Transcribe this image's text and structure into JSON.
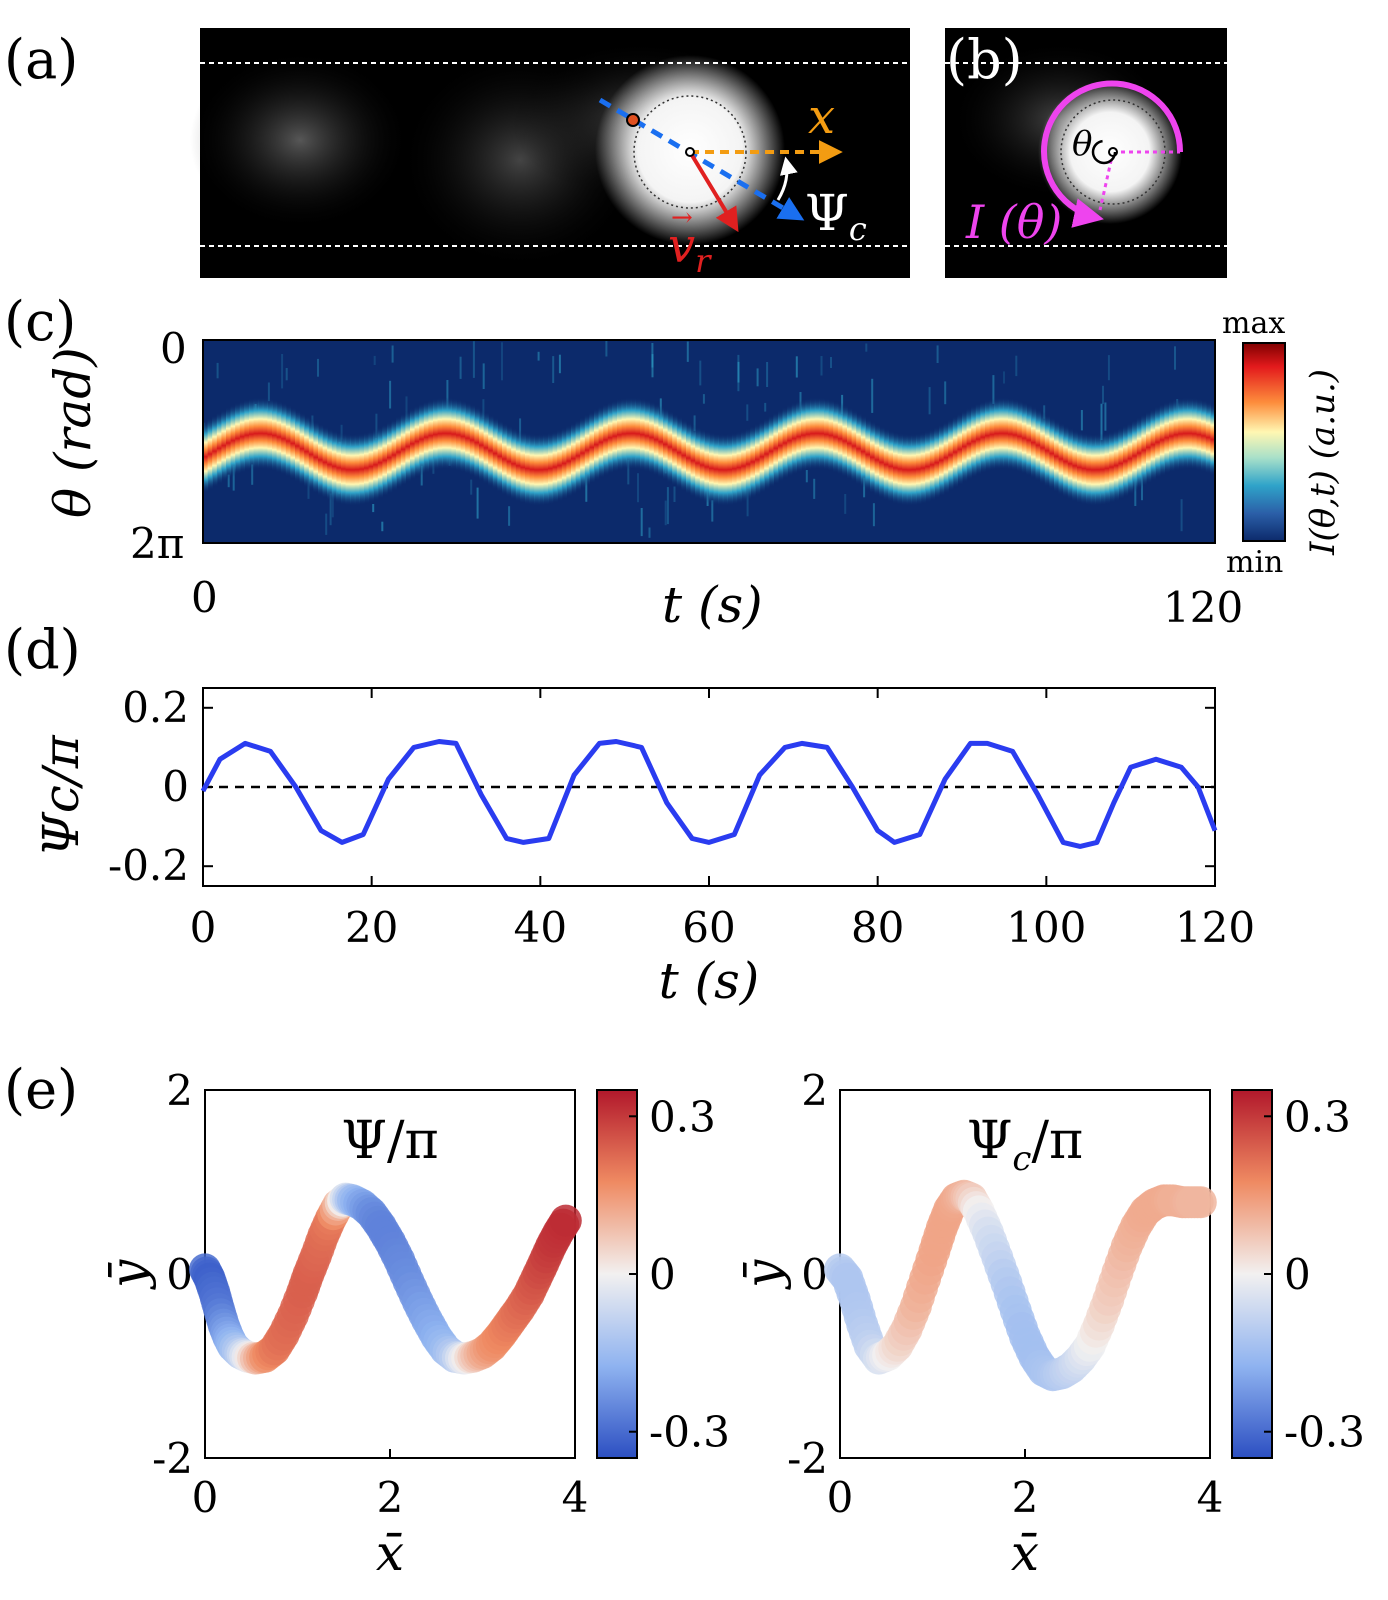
{
  "panels": {
    "a": "(a)",
    "b": "(b)",
    "c": "(c)",
    "d": "(d)",
    "e": "(e)"
  },
  "panel_a": {
    "x_label": "x",
    "psi_label": "Ψ",
    "psi_sub": "c",
    "v_label": "v",
    "v_sub": "r",
    "colors": {
      "x_arrow": "#f39c12",
      "v_arrow": "#e02020",
      "psi_arrow": "#1a6ff0",
      "frame": "#000000"
    }
  },
  "panel_b": {
    "theta_label": "θ",
    "intensity_label": "I (θ)",
    "colors": {
      "arc": "#ee44ee"
    }
  },
  "chart_data": [
    {
      "id": "c",
      "type": "heatmap",
      "title": "",
      "ylabel": "θ (rad)",
      "xlabel": "t (s)",
      "xlim": [
        0,
        120
      ],
      "yticks": [
        "0",
        "2π"
      ],
      "xticks": [
        "0",
        "120"
      ],
      "colorbar": {
        "top": "max",
        "bottom": "min",
        "label": "I(θ,t)  (a.u.)"
      },
      "band": {
        "center_frac": 0.55,
        "amplitude_frac": 0.09,
        "period_s": 22
      }
    },
    {
      "id": "d",
      "type": "line",
      "xlabel": "t (s)",
      "ylabel": "Ψc/π",
      "xlim": [
        0,
        120
      ],
      "ylim": [
        -0.25,
        0.25
      ],
      "xticks": [
        "0",
        "20",
        "40",
        "60",
        "80",
        "100",
        "120"
      ],
      "yticks": [
        "0.2",
        "0",
        "-0.2"
      ],
      "series": [
        {
          "name": "Psi_c/pi",
          "color": "#2a3cf0",
          "x": [
            0,
            2,
            5,
            8,
            11,
            14,
            16.5,
            19,
            22,
            25,
            28,
            30,
            33,
            36,
            38,
            41,
            44,
            47,
            49,
            52,
            55,
            58,
            60,
            63,
            66,
            69,
            71,
            74,
            77,
            80,
            82,
            85,
            88,
            91,
            93,
            96,
            99,
            102,
            104,
            106,
            108,
            110,
            113,
            116,
            118,
            120
          ],
          "y": [
            -0.01,
            0.07,
            0.11,
            0.09,
            0.0,
            -0.11,
            -0.14,
            -0.12,
            0.02,
            0.1,
            0.115,
            0.11,
            -0.02,
            -0.13,
            -0.14,
            -0.13,
            0.03,
            0.11,
            0.115,
            0.1,
            -0.04,
            -0.13,
            -0.14,
            -0.12,
            0.03,
            0.1,
            0.11,
            0.1,
            0.0,
            -0.11,
            -0.14,
            -0.12,
            0.02,
            0.11,
            0.11,
            0.09,
            -0.02,
            -0.14,
            -0.15,
            -0.14,
            -0.04,
            0.05,
            0.07,
            0.05,
            0.0,
            -0.11
          ]
        }
      ],
      "reference_line": {
        "y": 0,
        "style": "dashed"
      }
    },
    {
      "id": "e1",
      "type": "scatter",
      "title": "Ψ/π",
      "xlabel": "x̄",
      "ylabel": "ȳ",
      "xlim": [
        0,
        4
      ],
      "ylim": [
        -2,
        2
      ],
      "xticks": [
        "0",
        "2",
        "4"
      ],
      "yticks": [
        "2",
        "0",
        "-2"
      ],
      "colorbar": {
        "ticks": [
          "0.3",
          "0",
          "-0.3"
        ],
        "range": [
          -0.35,
          0.35
        ]
      },
      "x": [
        0.0,
        0.05,
        0.1,
        0.15,
        0.2,
        0.25,
        0.3,
        0.38,
        0.46,
        0.55,
        0.65,
        0.75,
        0.85,
        0.95,
        1.05,
        1.12,
        1.2,
        1.28,
        1.36,
        1.44,
        1.52,
        1.6,
        1.7,
        1.8,
        1.9,
        2.0,
        2.1,
        2.2,
        2.3,
        2.4,
        2.5,
        2.6,
        2.7,
        2.8,
        2.9,
        3.0,
        3.1,
        3.2,
        3.3,
        3.4,
        3.5,
        3.58,
        3.66,
        3.74,
        3.82,
        3.9
      ],
      "y": [
        0.05,
        -0.05,
        -0.2,
        -0.38,
        -0.55,
        -0.68,
        -0.78,
        -0.86,
        -0.9,
        -0.92,
        -0.9,
        -0.82,
        -0.66,
        -0.45,
        -0.2,
        0.0,
        0.2,
        0.42,
        0.6,
        0.75,
        0.82,
        0.8,
        0.75,
        0.66,
        0.52,
        0.35,
        0.15,
        -0.08,
        -0.3,
        -0.5,
        -0.68,
        -0.82,
        -0.9,
        -0.92,
        -0.9,
        -0.86,
        -0.78,
        -0.66,
        -0.52,
        -0.38,
        -0.22,
        -0.05,
        0.12,
        0.3,
        0.45,
        0.58
      ],
      "c": [
        -0.3,
        -0.32,
        -0.3,
        -0.28,
        -0.24,
        -0.2,
        -0.16,
        -0.1,
        -0.02,
        0.08,
        0.16,
        0.2,
        0.22,
        0.23,
        0.24,
        0.24,
        0.23,
        0.22,
        0.2,
        0.1,
        -0.05,
        -0.15,
        -0.2,
        -0.24,
        -0.26,
        -0.26,
        -0.25,
        -0.24,
        -0.22,
        -0.2,
        -0.18,
        -0.15,
        -0.1,
        -0.02,
        0.06,
        0.12,
        0.16,
        0.18,
        0.2,
        0.22,
        0.24,
        0.26,
        0.28,
        0.3,
        0.31,
        0.32
      ]
    },
    {
      "id": "e2",
      "type": "scatter",
      "title": "Ψc/π",
      "xlabel": "x̄",
      "ylabel": "ȳ",
      "xlim": [
        0,
        4
      ],
      "ylim": [
        -2,
        2
      ],
      "xticks": [
        "0",
        "2",
        "4"
      ],
      "yticks": [
        "2",
        "0",
        "-2"
      ],
      "colorbar": {
        "ticks": [
          "0.3",
          "0",
          "-0.3"
        ],
        "range": [
          -0.35,
          0.35
        ]
      },
      "x": [
        0.0,
        0.08,
        0.16,
        0.24,
        0.32,
        0.42,
        0.52,
        0.62,
        0.72,
        0.82,
        0.92,
        1.02,
        1.1,
        1.18,
        1.26,
        1.34,
        1.42,
        1.5,
        1.6,
        1.7,
        1.8,
        1.9,
        2.0,
        2.1,
        2.2,
        2.3,
        2.4,
        2.5,
        2.6,
        2.7,
        2.8,
        2.9,
        3.0,
        3.1,
        3.2,
        3.3,
        3.4,
        3.5,
        3.6,
        3.7,
        3.8,
        3.9
      ],
      "y": [
        0.05,
        -0.05,
        -0.28,
        -0.55,
        -0.78,
        -0.92,
        -0.88,
        -0.78,
        -0.6,
        -0.35,
        -0.05,
        0.25,
        0.5,
        0.7,
        0.82,
        0.85,
        0.82,
        0.68,
        0.45,
        0.18,
        -0.1,
        -0.4,
        -0.68,
        -0.9,
        -1.05,
        -1.1,
        -1.08,
        -1.02,
        -0.92,
        -0.78,
        -0.55,
        -0.28,
        0.02,
        0.3,
        0.52,
        0.68,
        0.76,
        0.8,
        0.8,
        0.78,
        0.78,
        0.78
      ],
      "c": [
        -0.1,
        -0.12,
        -0.12,
        -0.11,
        -0.09,
        -0.05,
        0.0,
        0.04,
        0.07,
        0.1,
        0.12,
        0.13,
        0.13,
        0.13,
        0.12,
        0.1,
        0.06,
        0.0,
        -0.05,
        -0.08,
        -0.11,
        -0.13,
        -0.14,
        -0.14,
        -0.13,
        -0.12,
        -0.1,
        -0.08,
        -0.05,
        -0.01,
        0.03,
        0.06,
        0.08,
        0.1,
        0.11,
        0.12,
        0.12,
        0.12,
        0.11,
        0.11,
        0.1,
        0.1
      ]
    }
  ]
}
